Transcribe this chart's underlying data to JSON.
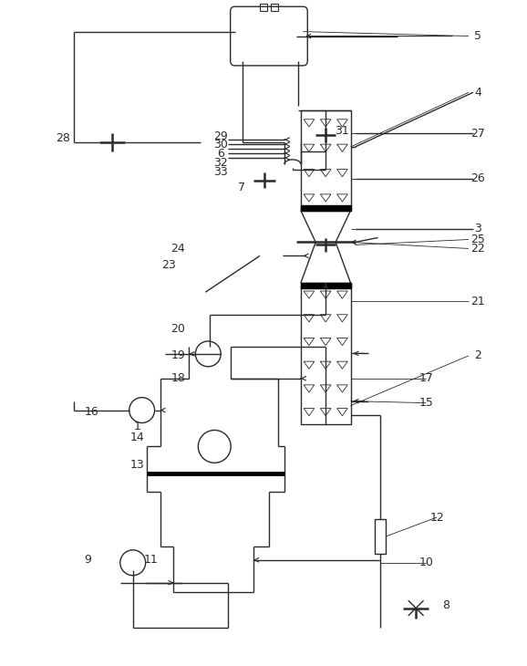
{
  "bg_color": "#ffffff",
  "line_color": "#2a2a2a",
  "figsize": [
    5.78,
    7.3
  ],
  "dpi": 100
}
